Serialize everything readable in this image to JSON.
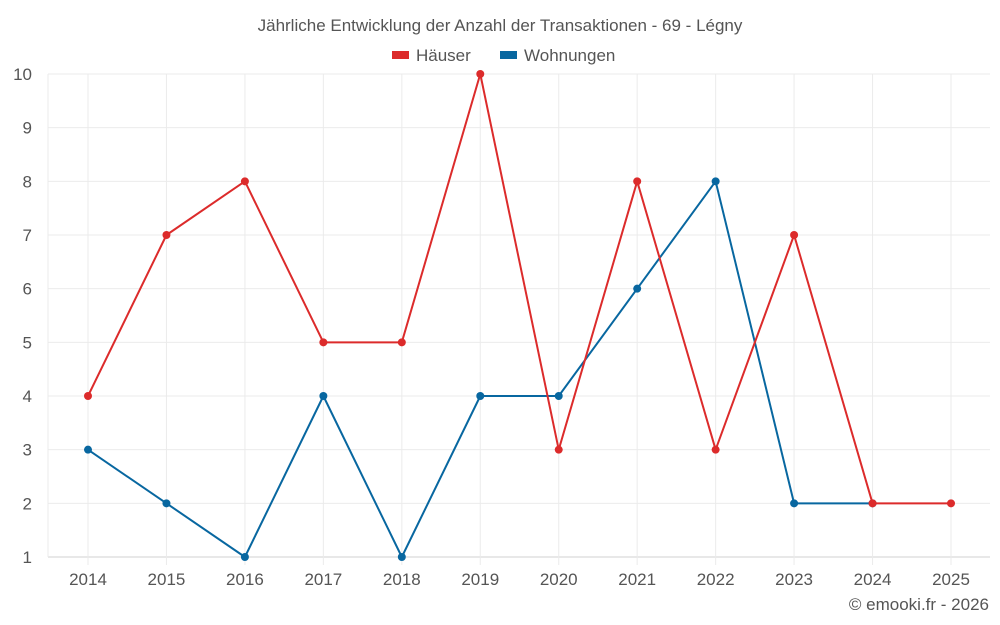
{
  "chart_data": {
    "type": "line",
    "title": "Jährliche Entwicklung der Anzahl der Transaktionen - 69 - Légny",
    "xlabel": "",
    "ylabel": "",
    "categories": [
      "2014",
      "2015",
      "2016",
      "2017",
      "2018",
      "2019",
      "2020",
      "2021",
      "2022",
      "2023",
      "2024",
      "2025"
    ],
    "series": [
      {
        "name": "Häuser",
        "color": "#dc2b2b",
        "values": [
          4,
          7,
          8,
          5,
          5,
          10,
          3,
          8,
          3,
          7,
          2,
          2
        ]
      },
      {
        "name": "Wohnungen",
        "color": "#0867a0",
        "values": [
          3,
          2,
          1,
          4,
          1,
          4,
          4,
          6,
          8,
          2,
          2,
          null
        ]
      }
    ],
    "ylim": [
      1,
      10
    ],
    "yticks": [
      1,
      2,
      3,
      4,
      5,
      6,
      7,
      8,
      9,
      10
    ],
    "grid": true,
    "legend_position": "top"
  },
  "credit": "© emooki.fr - 2026"
}
